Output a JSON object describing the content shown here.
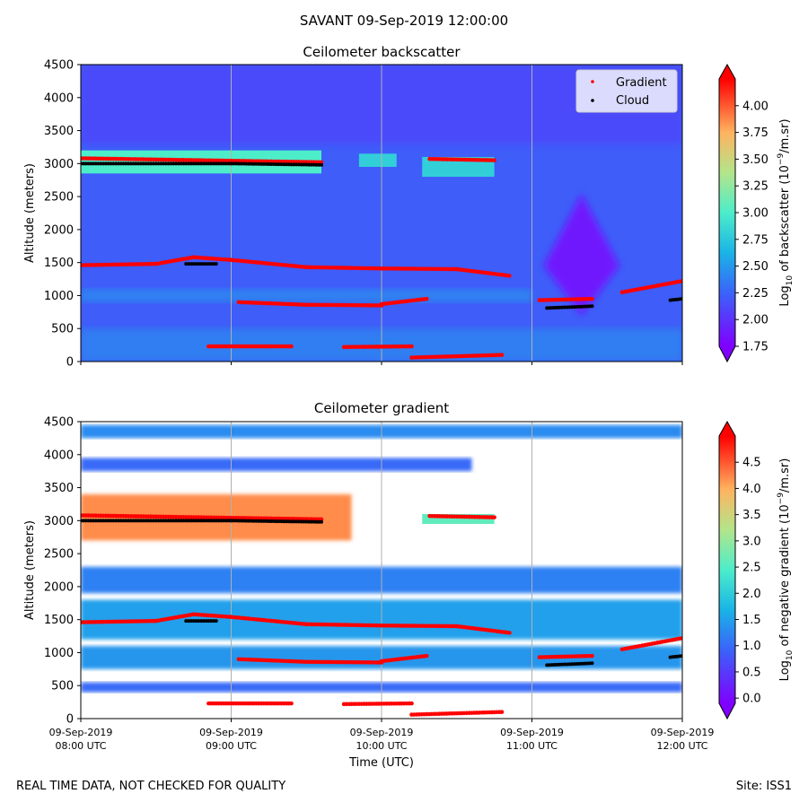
{
  "suptitle": "SAVANT 09-Sep-2019 12:00:00",
  "footer_left": "REAL TIME DATA, NOT CHECKED FOR QUALITY",
  "footer_right": "Site: ISS1",
  "colors": {
    "gradient_marker": "#ff0000",
    "cloud_marker": "#000000",
    "nodata": "#ffffff",
    "colormap": "rainbow"
  },
  "chart_data": [
    {
      "type": "heatmap",
      "title": "Ceilometer backscatter",
      "ylabel": "Altitude (meters)",
      "xlabel": "",
      "xlim": [
        "09-Sep-2019 08:00",
        "09-Sep-2019 12:00"
      ],
      "ylim": [
        0,
        4500
      ],
      "yticks": [
        "0",
        "500",
        "1000",
        "1500",
        "2000",
        "2500",
        "3000",
        "3500",
        "4000",
        "4500"
      ],
      "xticks": [],
      "grid": "vertical at each hour",
      "legend": {
        "placement": "top-right",
        "entries": [
          "Gradient",
          "Cloud"
        ]
      },
      "colorbar": {
        "label_prefix": "Log",
        "label_sub": "10",
        "label_mid": " of backscatter (10",
        "label_sup": "−9",
        "label_suffix": "/m.sr)",
        "range": [
          1.75,
          4.25
        ],
        "ticks": [
          "1.75",
          "2.00",
          "2.25",
          "2.50",
          "2.75",
          "3.00",
          "3.25",
          "3.50",
          "3.75",
          "4.00"
        ]
      },
      "features": [
        {
          "kind": "layer",
          "t": [
            8.0,
            9.6
          ],
          "alt": [
            2850,
            3200
          ],
          "level": 3.0
        },
        {
          "kind": "layer",
          "t": [
            9.85,
            10.1
          ],
          "alt": [
            2950,
            3150
          ],
          "level": 2.8
        },
        {
          "kind": "layer",
          "t": [
            10.27,
            10.75
          ],
          "alt": [
            2800,
            3100
          ],
          "level": 2.8
        },
        {
          "kind": "low-backscatter",
          "t_center": 11.33,
          "alt_center": 1450,
          "description": "purple minimum"
        }
      ],
      "series": [
        {
          "name": "Gradient",
          "marker": "red dots",
          "segments": [
            {
              "t": [
                8.0,
                8.5,
                8.75,
                9.0,
                9.5,
                10.0,
                10.5,
                10.85
              ],
              "alt": [
                1460,
                1480,
                1580,
                1540,
                1430,
                1410,
                1400,
                1300
              ]
            },
            {
              "t": [
                9.05,
                9.5,
                10.0
              ],
              "alt": [
                900,
                860,
                850
              ]
            },
            {
              "t": [
                10.0,
                10.3
              ],
              "alt": [
                870,
                950
              ]
            },
            {
              "t": [
                8.85,
                9.4
              ],
              "alt": [
                230,
                230
              ]
            },
            {
              "t": [
                9.75,
                10.2
              ],
              "alt": [
                220,
                230
              ]
            },
            {
              "t": [
                10.2,
                10.8
              ],
              "alt": [
                60,
                100
              ]
            },
            {
              "t": [
                11.05,
                11.4
              ],
              "alt": [
                930,
                950
              ]
            },
            {
              "t": [
                11.6,
                12.0
              ],
              "alt": [
                1050,
                1220
              ]
            },
            {
              "t": [
                8.0,
                9.6
              ],
              "alt": [
                3080,
                3020
              ]
            },
            {
              "t": [
                10.32,
                10.75
              ],
              "alt": [
                3070,
                3050
              ]
            }
          ]
        },
        {
          "name": "Cloud",
          "marker": "black dots",
          "segments": [
            {
              "t": [
                8.0,
                9.0,
                9.6
              ],
              "alt": [
                3000,
                3000,
                2980
              ]
            },
            {
              "t": [
                8.7,
                8.9
              ],
              "alt": [
                1480,
                1480
              ]
            },
            {
              "t": [
                11.1,
                11.4
              ],
              "alt": [
                810,
                840
              ]
            },
            {
              "t": [
                11.92,
                12.0
              ],
              "alt": [
                930,
                950
              ]
            }
          ]
        }
      ]
    },
    {
      "type": "heatmap",
      "title": "Ceilometer gradient",
      "ylabel": "Altitude (meters)",
      "xlabel": "Time (UTC)",
      "xlim": [
        "09-Sep-2019 08:00",
        "09-Sep-2019 12:00"
      ],
      "ylim": [
        0,
        4500
      ],
      "yticks": [
        "0",
        "500",
        "1000",
        "1500",
        "2000",
        "2500",
        "3000",
        "3500",
        "4000",
        "4500"
      ],
      "xticks": [
        {
          "l1": "09-Sep-2019",
          "l2": "08:00 UTC"
        },
        {
          "l1": "09-Sep-2019",
          "l2": "09:00 UTC"
        },
        {
          "l1": "09-Sep-2019",
          "l2": "10:00 UTC"
        },
        {
          "l1": "09-Sep-2019",
          "l2": "11:00 UTC"
        },
        {
          "l1": "09-Sep-2019",
          "l2": "12:00 UTC"
        }
      ],
      "grid": "vertical at each hour",
      "colorbar": {
        "label_prefix": "Log",
        "label_sub": "10",
        "label_mid": " of negative gradient (10",
        "label_sup": "−9",
        "label_suffix": "/m.sr)",
        "range": [
          -0.1,
          5.0
        ],
        "ticks": [
          "0.0",
          "0.5",
          "1.0",
          "1.5",
          "2.0",
          "2.5",
          "3.0",
          "3.5",
          "4.0",
          "4.5"
        ]
      },
      "features": [
        {
          "kind": "band",
          "t": [
            8.0,
            12.0
          ],
          "alt": [
            4250,
            4450
          ],
          "level": 1.3
        },
        {
          "kind": "band",
          "t": [
            8.0,
            10.6
          ],
          "alt": [
            3750,
            3950
          ],
          "level": 1.0
        },
        {
          "kind": "band",
          "t": [
            8.0,
            9.8
          ],
          "alt": [
            2700,
            3400
          ],
          "level": 4.2
        },
        {
          "kind": "band",
          "t": [
            8.0,
            12.0
          ],
          "alt": [
            1900,
            2300
          ],
          "level": 1.2
        },
        {
          "kind": "band",
          "t": [
            8.0,
            12.0
          ],
          "alt": [
            1200,
            1800
          ],
          "level": 1.5
        },
        {
          "kind": "band",
          "t": [
            8.0,
            12.0
          ],
          "alt": [
            750,
            1100
          ],
          "level": 1.4
        },
        {
          "kind": "band",
          "t": [
            8.0,
            12.0
          ],
          "alt": [
            400,
            550
          ],
          "level": 1.0
        }
      ]
    }
  ]
}
